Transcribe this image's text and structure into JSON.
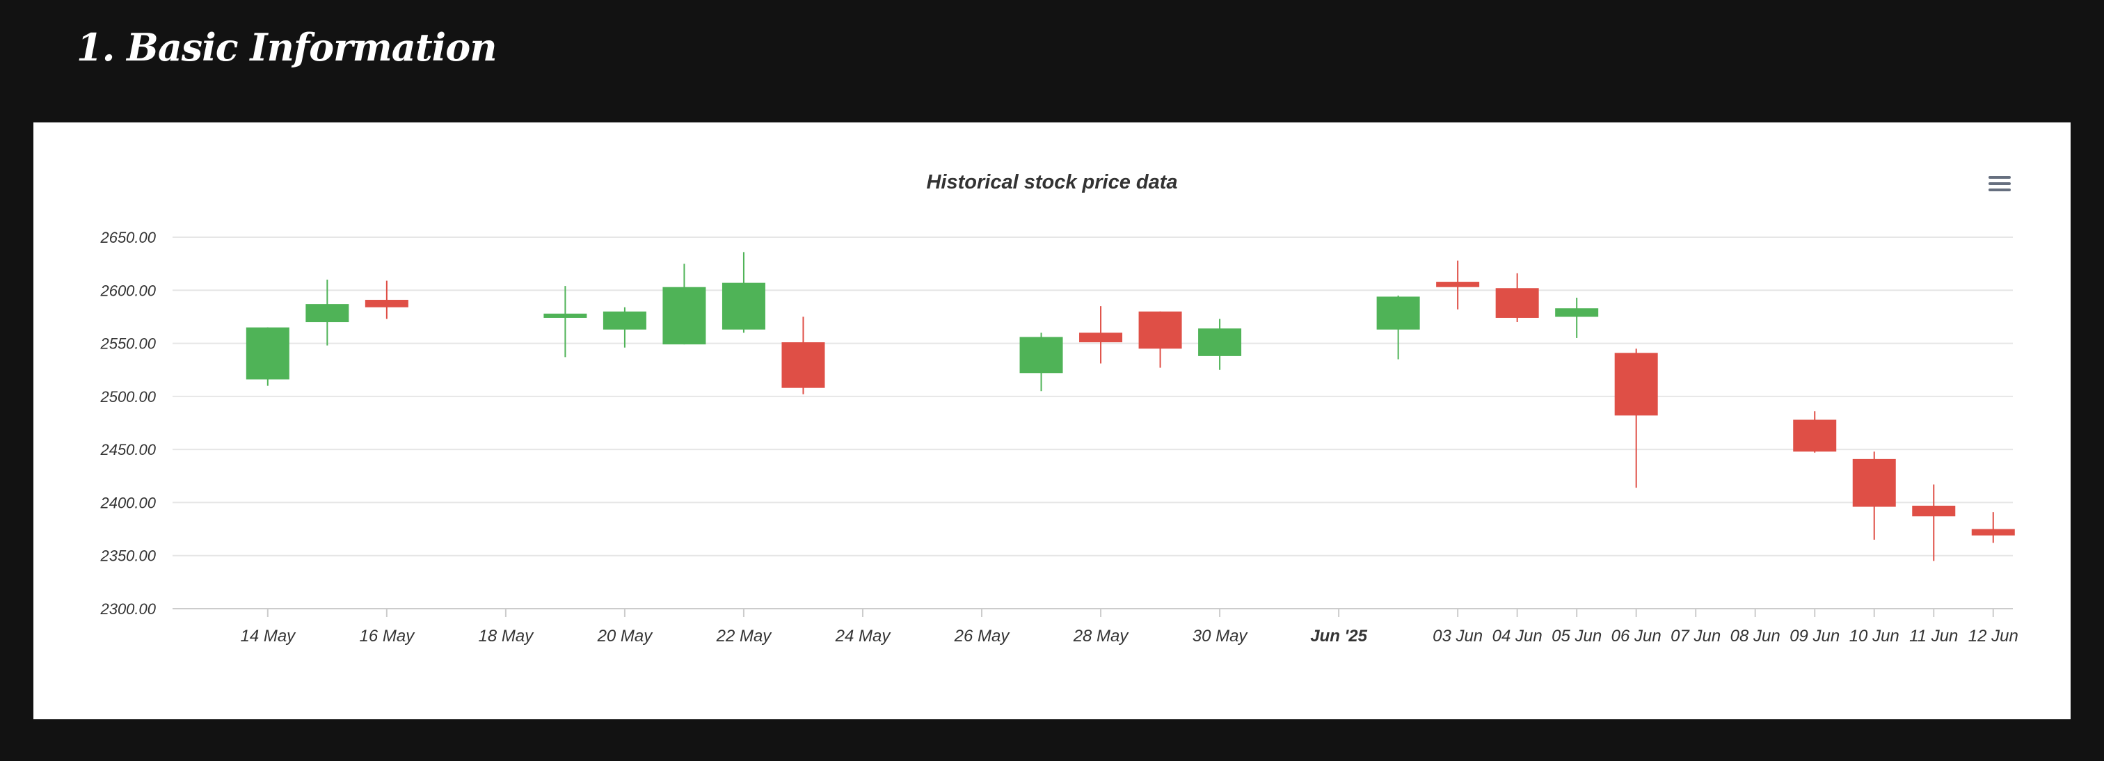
{
  "page": {
    "section_title": "1. Basic Information"
  },
  "toolbar": {
    "menu_icon": "hamburger-menu-icon"
  },
  "chart_data": {
    "type": "candlestick",
    "title": "Historical stock price data",
    "xlabel": "",
    "ylabel": "",
    "ylim": [
      2300,
      2650
    ],
    "y_ticks": [
      "2300.00",
      "2350.00",
      "2400.00",
      "2450.00",
      "2500.00",
      "2550.00",
      "2600.00",
      "2650.00"
    ],
    "x_range": [
      "2025-05-13",
      "2025-06-12"
    ],
    "x_ticks": [
      {
        "date": "2025-05-14",
        "label": "14 May"
      },
      {
        "date": "2025-05-16",
        "label": "16 May"
      },
      {
        "date": "2025-05-18",
        "label": "18 May"
      },
      {
        "date": "2025-05-20",
        "label": "20 May"
      },
      {
        "date": "2025-05-22",
        "label": "22 May"
      },
      {
        "date": "2025-05-24",
        "label": "24 May"
      },
      {
        "date": "2025-05-26",
        "label": "26 May"
      },
      {
        "date": "2025-05-28",
        "label": "28 May"
      },
      {
        "date": "2025-05-30",
        "label": "30 May"
      },
      {
        "date": "2025-06-01",
        "label": "Jun '25",
        "bold": true
      },
      {
        "date": "2025-06-03",
        "label": "03 Jun"
      },
      {
        "date": "2025-06-04",
        "label": "04 Jun"
      },
      {
        "date": "2025-06-05",
        "label": "05 Jun"
      },
      {
        "date": "2025-06-06",
        "label": "06 Jun"
      },
      {
        "date": "2025-06-07",
        "label": "07 Jun"
      },
      {
        "date": "2025-06-08",
        "label": "08 Jun"
      },
      {
        "date": "2025-06-09",
        "label": "09 Jun"
      },
      {
        "date": "2025-06-10",
        "label": "10 Jun"
      },
      {
        "date": "2025-06-11",
        "label": "11 Jun"
      },
      {
        "date": "2025-06-12",
        "label": "12 Jun"
      }
    ],
    "up_color": "#4fb357",
    "down_color": "#df4f46",
    "grid": true,
    "candles": [
      {
        "date": "2025-05-14",
        "open": 2516,
        "high": 2565,
        "low": 2510,
        "close": 2565
      },
      {
        "date": "2025-05-15",
        "open": 2570,
        "high": 2610,
        "low": 2548,
        "close": 2587
      },
      {
        "date": "2025-05-16",
        "open": 2591,
        "high": 2609,
        "low": 2573,
        "close": 2584
      },
      {
        "date": "2025-05-19",
        "open": 2574,
        "high": 2604,
        "low": 2537,
        "close": 2578
      },
      {
        "date": "2025-05-20",
        "open": 2563,
        "high": 2584,
        "low": 2546,
        "close": 2580
      },
      {
        "date": "2025-05-21",
        "open": 2549,
        "high": 2625,
        "low": 2549,
        "close": 2603
      },
      {
        "date": "2025-05-22",
        "open": 2563,
        "high": 2636,
        "low": 2560,
        "close": 2607
      },
      {
        "date": "2025-05-23",
        "open": 2551,
        "high": 2575,
        "low": 2502,
        "close": 2508
      },
      {
        "date": "2025-05-27",
        "open": 2522,
        "high": 2560,
        "low": 2505,
        "close": 2556
      },
      {
        "date": "2025-05-28",
        "open": 2560,
        "high": 2585,
        "low": 2531,
        "close": 2551
      },
      {
        "date": "2025-05-29",
        "open": 2580,
        "high": 2580,
        "low": 2527,
        "close": 2545
      },
      {
        "date": "2025-05-30",
        "open": 2538,
        "high": 2573,
        "low": 2525,
        "close": 2564
      },
      {
        "date": "2025-06-02",
        "open": 2563,
        "high": 2595,
        "low": 2535,
        "close": 2594
      },
      {
        "date": "2025-06-03",
        "open": 2608,
        "high": 2628,
        "low": 2582,
        "close": 2603
      },
      {
        "date": "2025-06-04",
        "open": 2602,
        "high": 2616,
        "low": 2570,
        "close": 2574
      },
      {
        "date": "2025-06-05",
        "open": 2575,
        "high": 2593,
        "low": 2555,
        "close": 2583
      },
      {
        "date": "2025-06-06",
        "open": 2541,
        "high": 2545,
        "low": 2414,
        "close": 2482
      },
      {
        "date": "2025-06-09",
        "open": 2478,
        "high": 2486,
        "low": 2447,
        "close": 2448
      },
      {
        "date": "2025-06-10",
        "open": 2441,
        "high": 2448,
        "low": 2365,
        "close": 2396
      },
      {
        "date": "2025-06-11",
        "open": 2397,
        "high": 2417,
        "low": 2345,
        "close": 2387
      },
      {
        "date": "2025-06-12",
        "open": 2375,
        "high": 2391,
        "low": 2362,
        "close": 2369
      }
    ]
  }
}
